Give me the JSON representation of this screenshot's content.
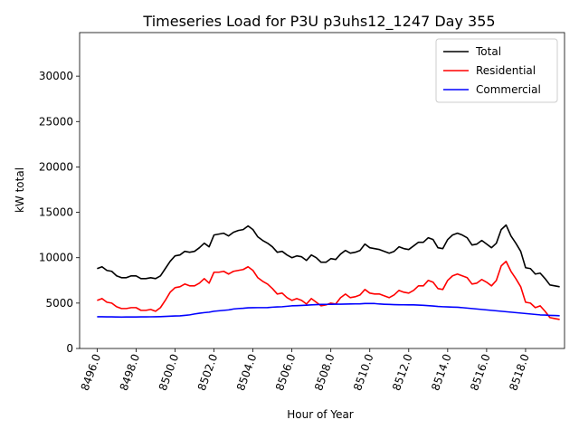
{
  "chart_data": {
    "type": "line",
    "title": "Timeseries Load for P3U p3uhs12_1247  Day 355",
    "xlabel": "Hour of Year",
    "ylabel": "kW total",
    "xlim": [
      8495.1,
      8520.0
    ],
    "ylim": [
      0,
      34800
    ],
    "x_ticks": [
      8496,
      8498,
      8500,
      8502,
      8504,
      8506,
      8508,
      8510,
      8512,
      8514,
      8516,
      8518
    ],
    "x_tick_labels": [
      "8496.0",
      "8498.0",
      "8500.0",
      "8502.0",
      "8504.0",
      "8506.0",
      "8508.0",
      "8510.0",
      "8512.0",
      "8514.0",
      "8516.0",
      "8518.0"
    ],
    "y_ticks": [
      0,
      5000,
      10000,
      15000,
      20000,
      25000,
      30000
    ],
    "y_tick_labels": [
      "0",
      "5000",
      "10000",
      "15000",
      "20000",
      "25000",
      "30000"
    ],
    "legend_position": "top-right",
    "x_start": 8496.0,
    "x_step": 0.25,
    "series": [
      {
        "name": "Total",
        "color": "#000000",
        "values": [
          8800,
          9000,
          8600,
          8500,
          8000,
          7800,
          7800,
          8000,
          8000,
          7700,
          7700,
          7800,
          7700,
          8000,
          8800,
          9600,
          10200,
          10300,
          10700,
          10600,
          10700,
          11100,
          11600,
          11200,
          12500,
          12600,
          12700,
          12400,
          12800,
          13000,
          13100,
          13500,
          13100,
          12300,
          11900,
          11600,
          11200,
          10600,
          10700,
          10300,
          10000,
          10200,
          10100,
          9700,
          10300,
          10000,
          9500,
          9500,
          9900,
          9800,
          10400,
          10800,
          10500,
          10600,
          10800,
          11500,
          11100,
          11000,
          10900,
          10700,
          10500,
          10700,
          11200,
          11000,
          10900,
          11300,
          11700,
          11700,
          12200,
          12000,
          11100,
          11000,
          12000,
          12500,
          12700,
          12500,
          12200,
          11400,
          11500,
          11900,
          11500,
          11100,
          11600,
          13100,
          13600,
          12400,
          11600,
          10700,
          8900,
          8800,
          8200,
          8300,
          7700,
          7000,
          6900,
          6800
        ]
      },
      {
        "name": "Residential",
        "color": "#ff0000",
        "values": [
          5300,
          5500,
          5100,
          5000,
          4600,
          4400,
          4400,
          4500,
          4500,
          4200,
          4200,
          4300,
          4100,
          4500,
          5300,
          6200,
          6700,
          6800,
          7100,
          6900,
          6900,
          7200,
          7700,
          7200,
          8400,
          8400,
          8500,
          8200,
          8500,
          8600,
          8700,
          9000,
          8600,
          7800,
          7400,
          7100,
          6600,
          6000,
          6100,
          5600,
          5300,
          5500,
          5300,
          4900,
          5500,
          5100,
          4700,
          4800,
          5000,
          4900,
          5600,
          6000,
          5600,
          5700,
          5900,
          6500,
          6100,
          6000,
          6000,
          5800,
          5600,
          5900,
          6400,
          6200,
          6100,
          6400,
          6900,
          6900,
          7500,
          7300,
          6600,
          6500,
          7500,
          8000,
          8200,
          8000,
          7800,
          7100,
          7200,
          7600,
          7300,
          6900,
          7500,
          9100,
          9600,
          8500,
          7700,
          6800,
          5100,
          5000,
          4500,
          4700,
          4100,
          3400,
          3300,
          3200
        ]
      },
      {
        "name": "Commercial",
        "color": "#0000ff",
        "values": [
          3500,
          3500,
          3480,
          3480,
          3470,
          3460,
          3470,
          3470,
          3470,
          3480,
          3480,
          3490,
          3500,
          3510,
          3530,
          3560,
          3580,
          3600,
          3650,
          3700,
          3800,
          3880,
          3950,
          4000,
          4100,
          4150,
          4200,
          4250,
          4350,
          4400,
          4430,
          4480,
          4490,
          4500,
          4500,
          4510,
          4550,
          4580,
          4600,
          4650,
          4700,
          4720,
          4740,
          4770,
          4800,
          4830,
          4850,
          4860,
          4870,
          4880,
          4880,
          4890,
          4900,
          4910,
          4920,
          4950,
          4950,
          4950,
          4900,
          4870,
          4850,
          4830,
          4820,
          4810,
          4800,
          4800,
          4780,
          4750,
          4720,
          4680,
          4630,
          4600,
          4580,
          4560,
          4540,
          4500,
          4450,
          4400,
          4350,
          4300,
          4250,
          4200,
          4150,
          4100,
          4050,
          4000,
          3950,
          3900,
          3850,
          3800,
          3750,
          3700,
          3680,
          3650,
          3630,
          3610
        ]
      }
    ]
  }
}
